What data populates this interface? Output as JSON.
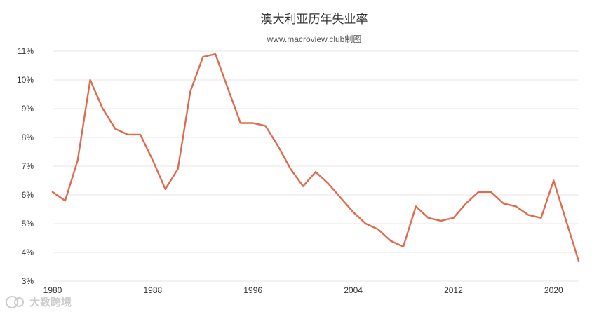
{
  "chart_data": {
    "type": "line",
    "title": "澳大利亚历年失业率",
    "subtitle": "www.macroview.club制图",
    "xlabel": "",
    "ylabel": "",
    "ylim": [
      3,
      11
    ],
    "xlim": [
      1980,
      2022
    ],
    "yticks": [
      {
        "value": 3,
        "label": "3%"
      },
      {
        "value": 4,
        "label": "4%"
      },
      {
        "value": 5,
        "label": "5%"
      },
      {
        "value": 6,
        "label": "6%"
      },
      {
        "value": 7,
        "label": "7%"
      },
      {
        "value": 8,
        "label": "8%"
      },
      {
        "value": 9,
        "label": "9%"
      },
      {
        "value": 10,
        "label": "10%"
      },
      {
        "value": 11,
        "label": "11%"
      }
    ],
    "xticks": [
      {
        "value": 1980,
        "label": "1980"
      },
      {
        "value": 1988,
        "label": "1988"
      },
      {
        "value": 1996,
        "label": "1996"
      },
      {
        "value": 2004,
        "label": "2004"
      },
      {
        "value": 2012,
        "label": "2012"
      },
      {
        "value": 2020,
        "label": "2020"
      }
    ],
    "grid": true,
    "color": "#dd6b4d",
    "x": [
      1980,
      1981,
      1982,
      1983,
      1984,
      1985,
      1986,
      1987,
      1988,
      1989,
      1990,
      1991,
      1992,
      1993,
      1994,
      1995,
      1996,
      1997,
      1998,
      1999,
      2000,
      2001,
      2002,
      2003,
      2004,
      2005,
      2006,
      2007,
      2008,
      2009,
      2010,
      2011,
      2012,
      2013,
      2014,
      2015,
      2016,
      2017,
      2018,
      2019,
      2020,
      2021,
      2022
    ],
    "series": [
      {
        "values": [
          6.1,
          5.8,
          7.2,
          10.0,
          9.0,
          8.3,
          8.1,
          8.1,
          7.2,
          6.2,
          6.9,
          9.6,
          10.8,
          10.9,
          9.7,
          8.5,
          8.5,
          8.4,
          7.7,
          6.9,
          6.3,
          6.8,
          6.4,
          5.9,
          5.4,
          5.0,
          4.8,
          4.4,
          4.2,
          5.6,
          5.2,
          5.1,
          5.2,
          5.7,
          6.1,
          6.1,
          5.7,
          5.6,
          5.3,
          5.2,
          6.5,
          5.1,
          3.7
        ]
      }
    ]
  },
  "watermark": {
    "icon": "fox-logo-icon",
    "text": "大数跨境"
  }
}
